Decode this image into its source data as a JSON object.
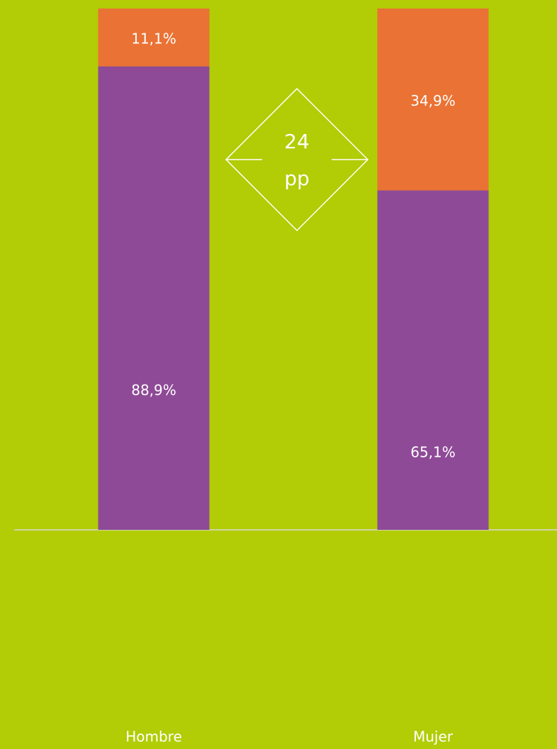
{
  "chart_data": {
    "type": "stacked_bar",
    "categories": [
      "Hombre",
      "Mujer"
    ],
    "series": [
      {
        "color": "#8e4a97",
        "values": [
          88.9,
          65.1
        ],
        "value_labels": [
          "88,9%",
          "65,1%"
        ]
      },
      {
        "color": "#e97234",
        "values": [
          11.1,
          34.9
        ],
        "value_labels": [
          "11,1%",
          "34,9%"
        ]
      }
    ],
    "ylim": [
      0,
      100
    ],
    "annotation": [
      "24",
      "pp"
    ],
    "background": "#b2cc06"
  }
}
